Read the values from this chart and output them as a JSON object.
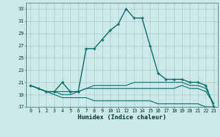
{
  "xlabel": "Humidex (Indice chaleur)",
  "background_color": "#cce8e8",
  "grid_color": "#aacccc",
  "line_color": "#006868",
  "xlim": [
    -0.5,
    23.5
  ],
  "ylim": [
    17,
    34
  ],
  "yticks": [
    17,
    19,
    21,
    23,
    25,
    27,
    29,
    31,
    33
  ],
  "xticks": [
    0,
    1,
    2,
    3,
    4,
    5,
    6,
    7,
    8,
    9,
    10,
    11,
    12,
    13,
    14,
    15,
    16,
    17,
    18,
    19,
    20,
    21,
    22,
    23
  ],
  "main_x": [
    0,
    1,
    2,
    3,
    4,
    5,
    6,
    7,
    8,
    9,
    10,
    11,
    12,
    13,
    14,
    15,
    16,
    17,
    18,
    19,
    20,
    21,
    22,
    23
  ],
  "main_y": [
    20.5,
    20.0,
    19.5,
    19.5,
    21.0,
    19.5,
    19.5,
    26.5,
    26.5,
    28.0,
    29.5,
    30.5,
    33.0,
    31.5,
    31.5,
    27.0,
    22.5,
    21.5,
    21.5,
    21.5,
    21.0,
    21.0,
    20.5,
    17.0
  ],
  "line1_x": [
    0,
    1,
    2,
    3,
    4,
    5,
    6,
    7,
    8,
    9,
    10,
    11,
    12,
    13,
    14,
    15,
    16,
    17,
    18,
    19,
    20,
    21,
    22,
    23
  ],
  "line1_y": [
    20.5,
    20.0,
    19.5,
    19.5,
    19.5,
    19.5,
    19.5,
    20.0,
    20.5,
    20.5,
    20.5,
    20.5,
    20.5,
    21.0,
    21.0,
    21.0,
    21.0,
    21.0,
    21.0,
    21.0,
    20.5,
    20.5,
    20.0,
    17.5
  ],
  "line2_x": [
    0,
    1,
    2,
    3,
    4,
    5,
    6,
    7,
    8,
    9,
    10,
    11,
    12,
    13,
    14,
    15,
    16,
    17,
    18,
    19,
    20,
    21,
    22,
    23
  ],
  "line2_y": [
    20.5,
    20.0,
    19.5,
    19.5,
    19.0,
    19.0,
    19.5,
    20.0,
    20.0,
    20.0,
    20.0,
    20.0,
    20.0,
    20.0,
    20.0,
    20.0,
    20.0,
    20.0,
    20.0,
    20.5,
    20.0,
    20.0,
    19.5,
    17.5
  ],
  "line3_x": [
    0,
    1,
    2,
    3,
    4,
    5,
    6,
    7,
    8,
    9,
    10,
    11,
    12,
    13,
    14,
    15,
    16,
    17,
    18,
    19,
    20,
    21,
    22,
    23
  ],
  "line3_y": [
    20.5,
    20.0,
    19.5,
    19.0,
    18.5,
    18.5,
    18.5,
    18.5,
    18.0,
    18.0,
    18.0,
    18.0,
    18.0,
    18.0,
    18.0,
    18.0,
    17.5,
    17.5,
    17.5,
    17.5,
    17.5,
    17.5,
    17.0,
    17.0
  ]
}
